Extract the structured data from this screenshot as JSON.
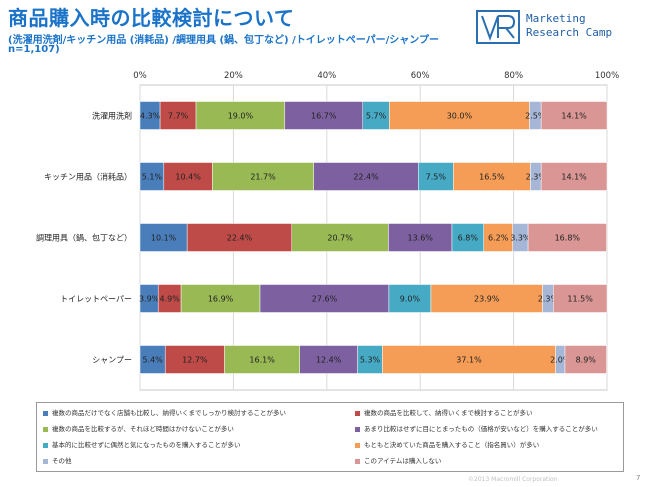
{
  "header": {
    "title": "商品購入時の比較検討について",
    "subtitle": "(洗濯用洗剤/キッチン用品 (消耗品) /調理用具 (鍋、包丁など) /トイレットペーパー/シャンプー",
    "sample": "n=1,107)"
  },
  "logo": {
    "line1": "Marketing",
    "line2": "Research Camp"
  },
  "footer": {
    "copyright": "©2013 Macromill Corporation",
    "page": "7"
  },
  "colors": [
    "#4a7ebb",
    "#be4b48",
    "#98b954",
    "#7d60a0",
    "#46aac4",
    "#f59d56",
    "#a5b6d7",
    "#d99694"
  ],
  "chart_data": {
    "type": "bar",
    "orientation": "horizontal",
    "stacked": true,
    "categories": [
      "洗濯用洗剤",
      "キッチン用品（消耗品）",
      "調理用具（鍋、包丁など）",
      "トイレットペーパー",
      "シャンプー"
    ],
    "series": [
      {
        "name": "複数の商品だけでなく店舗も比較し、納得いくまでしっかり検討することが多い",
        "values": [
          4.3,
          5.1,
          10.1,
          3.9,
          5.4
        ]
      },
      {
        "name": "複数の商品を比較して、納得いくまで検討することが多い",
        "values": [
          7.7,
          10.4,
          22.4,
          4.9,
          12.7
        ]
      },
      {
        "name": "複数の商品を比較するが、それほど時間はかけないことが多い",
        "values": [
          19.0,
          21.7,
          20.7,
          16.9,
          16.1
        ]
      },
      {
        "name": "あまり比較はせずに目にとまったもの（価格が安いなど）を購入することが多い",
        "values": [
          16.7,
          22.4,
          13.6,
          27.6,
          12.4
        ]
      },
      {
        "name": "基本的に比較せずに偶然と気になったものを購入することが多い",
        "values": [
          5.7,
          7.5,
          6.8,
          9.0,
          5.3
        ]
      },
      {
        "name": "もともと決めていた商品を購入すること（指名買い）が多い",
        "values": [
          30.0,
          16.5,
          6.2,
          23.9,
          37.1
        ]
      },
      {
        "name": "その他",
        "values": [
          2.5,
          2.3,
          3.3,
          2.3,
          2.0
        ]
      },
      {
        "name": "このアイテムは購入しない",
        "values": [
          14.1,
          14.1,
          16.8,
          11.5,
          8.9
        ]
      }
    ],
    "x_ticks": [
      "0%",
      "20%",
      "40%",
      "60%",
      "80%",
      "100%"
    ],
    "xlim": [
      0,
      100
    ],
    "grid": true,
    "legend_position": "bottom"
  }
}
